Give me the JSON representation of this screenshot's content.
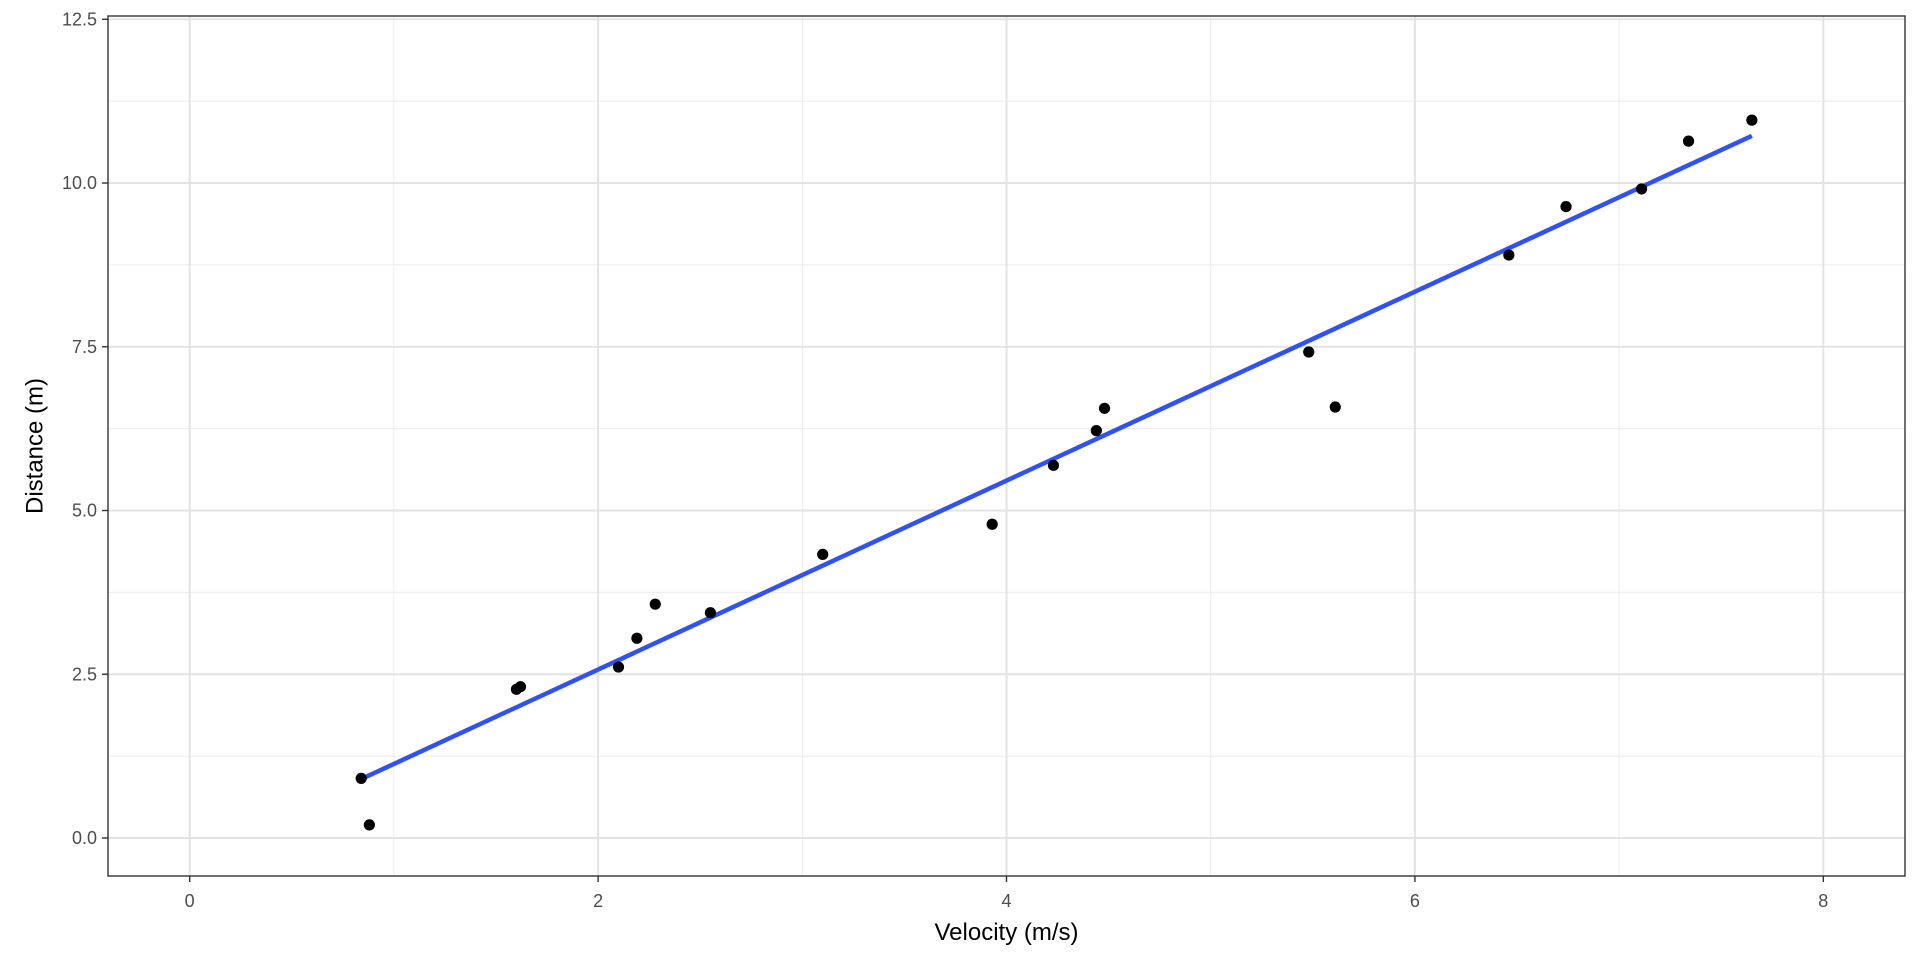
{
  "chart_data": {
    "type": "scatter",
    "title": "",
    "xlabel": "Velocity (m/s)",
    "ylabel": "Distance (m)",
    "xlim": [
      -0.4,
      8.4
    ],
    "ylim": [
      -0.58,
      12.55
    ],
    "x_ticks_major": [
      0,
      2,
      4,
      6,
      8
    ],
    "x_tick_labels": [
      "0",
      "2",
      "4",
      "6",
      "8"
    ],
    "x_ticks_minor": [
      1,
      3,
      5,
      7
    ],
    "y_ticks_major": [
      0,
      2.5,
      5,
      7.5,
      10,
      12.5
    ],
    "y_tick_labels": [
      "0.0",
      "2.5",
      "5.0",
      "7.5",
      "10.0",
      "12.5"
    ],
    "y_ticks_minor": [
      1.25,
      3.75,
      6.25,
      8.75,
      11.25
    ],
    "grid": true,
    "points": {
      "color": "#000000",
      "x": [
        0.84,
        0.88,
        1.6,
        1.62,
        2.1,
        2.19,
        2.28,
        2.55,
        3.1,
        3.93,
        4.23,
        4.44,
        4.48,
        5.48,
        5.61,
        6.46,
        6.74,
        7.11,
        7.34,
        7.65
      ],
      "y": [
        0.91,
        0.2,
        2.27,
        2.31,
        2.61,
        3.05,
        3.57,
        3.44,
        4.33,
        4.79,
        5.69,
        6.22,
        6.56,
        7.42,
        6.58,
        8.9,
        9.64,
        9.91,
        10.64,
        10.96
      ]
    },
    "fit_line": {
      "color": "#3050f8",
      "x": [
        0.84,
        7.65
      ],
      "y": [
        0.9,
        10.72
      ]
    }
  }
}
